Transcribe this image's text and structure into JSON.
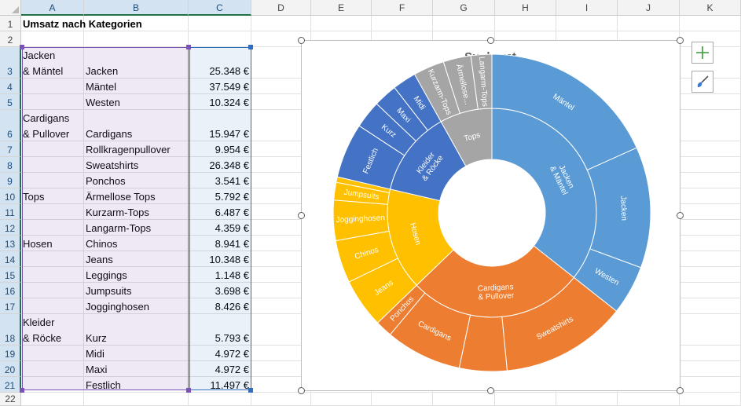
{
  "columns": [
    "A",
    "B",
    "C",
    "D",
    "E",
    "F",
    "G",
    "H",
    "I",
    "J",
    "K"
  ],
  "rows": [
    "1",
    "2",
    "3",
    "4",
    "5",
    "6",
    "7",
    "8",
    "9",
    "10",
    "11",
    "12",
    "13",
    "14",
    "15",
    "16",
    "17",
    "18",
    "19",
    "20",
    "21",
    "22"
  ],
  "sheet": {
    "title": "Umsatz nach Kategorien",
    "category_lines": [
      {
        "row": 3,
        "line1": "Jacken",
        "line2": "& Mäntel"
      },
      {
        "row": 6,
        "line1": "Cardigans",
        "line2": "& Pullover"
      },
      {
        "row": 10,
        "line1": "",
        "line2": "Tops"
      },
      {
        "row": 13,
        "line1": "",
        "line2": "Hosen"
      },
      {
        "row": 18,
        "line1": "Kleider",
        "line2": "& Röcke"
      }
    ],
    "items": [
      {
        "row": 3,
        "name": "Jacken",
        "value": "25.348 €"
      },
      {
        "row": 4,
        "name": "Mäntel",
        "value": "37.549 €"
      },
      {
        "row": 5,
        "name": "Westen",
        "value": "10.324 €"
      },
      {
        "row": 6,
        "name": "Cardigans",
        "value": "15.947 €"
      },
      {
        "row": 7,
        "name": "Rollkragenpullover",
        "value": "9.954 €"
      },
      {
        "row": 8,
        "name": "Sweatshirts",
        "value": "26.348 €"
      },
      {
        "row": 9,
        "name": "Ponchos",
        "value": "3.541 €"
      },
      {
        "row": 10,
        "name": "Ärmellose Tops",
        "value": "5.792 €"
      },
      {
        "row": 11,
        "name": "Kurzarm-Tops",
        "value": "6.487 €"
      },
      {
        "row": 12,
        "name": "Langarm-Tops",
        "value": "4.359 €"
      },
      {
        "row": 13,
        "name": "Chinos",
        "value": "8.941 €"
      },
      {
        "row": 14,
        "name": "Jeans",
        "value": "10.348 €"
      },
      {
        "row": 15,
        "name": "Leggings",
        "value": "1.148 €"
      },
      {
        "row": 16,
        "name": "Jumpsuits",
        "value": "3.698 €"
      },
      {
        "row": 17,
        "name": "Jogginghosen",
        "value": "8.426 €"
      },
      {
        "row": 18,
        "name": "Kurz",
        "value": "5.793 €"
      },
      {
        "row": 19,
        "name": "Midi",
        "value": "4.972 €"
      },
      {
        "row": 20,
        "name": "Maxi",
        "value": "4.972 €"
      },
      {
        "row": 21,
        "name": "Festlich",
        "value": "11.497 €"
      }
    ]
  },
  "chart_data": {
    "type": "sunburst",
    "title": "Sunburst",
    "categories": [
      {
        "name": "Jacken & Mäntel",
        "label_lines": [
          "Jacken",
          "& Mäntel"
        ],
        "color": "#5b9bd5",
        "children": [
          {
            "name": "Mäntel",
            "value": 37549
          },
          {
            "name": "Jacken",
            "value": 25348
          },
          {
            "name": "Westen",
            "value": 10324
          }
        ]
      },
      {
        "name": "Cardigans & Pullover",
        "label_lines": [
          "Cardigans",
          "& Pullover"
        ],
        "color": "#ed7d31",
        "children": [
          {
            "name": "Sweatshirts",
            "value": 26348
          },
          {
            "name": "",
            "value": 9954
          },
          {
            "name": "Cardigans",
            "value": 15947
          },
          {
            "name": "Ponchos",
            "value": 3541
          }
        ]
      },
      {
        "name": "Hosen",
        "label_lines": [
          "Hosen"
        ],
        "color": "#ffc000",
        "children": [
          {
            "name": "Jeans",
            "value": 10348
          },
          {
            "name": "Chinos",
            "value": 8941
          },
          {
            "name": "Jogginghosen",
            "value": 8426
          },
          {
            "name": "Jumpsuits",
            "value": 3698
          },
          {
            "name": "",
            "value": 1148
          }
        ]
      },
      {
        "name": "Kleider & Röcke",
        "label_lines": [
          "Kleider",
          "& Röcke"
        ],
        "color": "#4472c4",
        "children": [
          {
            "name": "Festlich",
            "value": 11497
          },
          {
            "name": "Kurz",
            "value": 5793
          },
          {
            "name": "Maxi",
            "value": 4972
          },
          {
            "name": "Midi",
            "value": 4972
          }
        ]
      },
      {
        "name": "Tops",
        "label_lines": [
          "Tops"
        ],
        "color": "#a5a5a5",
        "children": [
          {
            "name": "Kurzarm-Tops",
            "value": 6487
          },
          {
            "name": "Ärmellose...",
            "value": 5792
          },
          {
            "name": "Langarm-Tops",
            "value": 4359
          }
        ]
      }
    ]
  },
  "side_buttons": {
    "add": "chart-elements",
    "style": "chart-styles"
  }
}
